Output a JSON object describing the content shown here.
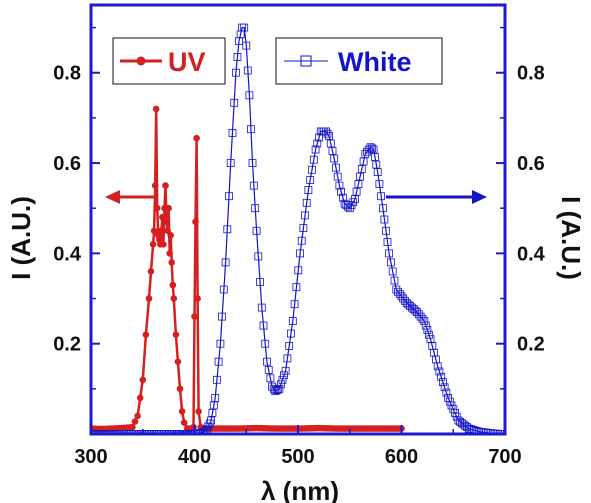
{
  "chart_data": {
    "type": "line",
    "title": "",
    "xlabel": "λ (nm)",
    "ylabel_left": "I (A.U.)",
    "ylabel_right": "I (A.U.)",
    "xlim": [
      300,
      700
    ],
    "ylim": [
      0,
      0.95
    ],
    "x_ticks": [
      300,
      400,
      500,
      600,
      700
    ],
    "y_ticks_left": [
      0.2,
      0.4,
      0.6,
      0.8
    ],
    "y_ticks_right": [
      0.2,
      0.4,
      0.6,
      0.8
    ],
    "grid": false,
    "legend_placement": "top",
    "colors": {
      "uv": "#d42020",
      "white": "#1414c8",
      "frame": "#1a1ad0",
      "text": "#111111"
    },
    "series": [
      {
        "name": "UV",
        "marker": "filled-circle",
        "axis": "left",
        "x": [
          300,
          310,
          320,
          330,
          340,
          345,
          350,
          353,
          356,
          358,
          360,
          361,
          362,
          363,
          364,
          365,
          366,
          367,
          368,
          369,
          370,
          371,
          372,
          373,
          374,
          375,
          376,
          377,
          378,
          379,
          380,
          382,
          384,
          386,
          388,
          390,
          393,
          396,
          399,
          400,
          401,
          402,
          403,
          404,
          406,
          410,
          420,
          440,
          460,
          480,
          500,
          520,
          540,
          560,
          580,
          600
        ],
        "values": [
          0.012,
          0.011,
          0.012,
          0.013,
          0.015,
          0.04,
          0.12,
          0.22,
          0.3,
          0.36,
          0.42,
          0.45,
          0.55,
          0.72,
          0.5,
          0.44,
          0.43,
          0.42,
          0.45,
          0.48,
          0.42,
          0.5,
          0.55,
          0.47,
          0.45,
          0.5,
          0.4,
          0.44,
          0.38,
          0.33,
          0.3,
          0.22,
          0.16,
          0.1,
          0.05,
          0.025,
          0.012,
          0.012,
          0.015,
          0.26,
          0.47,
          0.655,
          0.3,
          0.05,
          0.015,
          0.012,
          0.012,
          0.012,
          0.013,
          0.012,
          0.012,
          0.013,
          0.012,
          0.012,
          0.012,
          0.012
        ]
      },
      {
        "name": "White",
        "marker": "open-square",
        "axis": "right",
        "x": [
          300,
          340,
          380,
          400,
          408,
          412,
          416,
          420,
          425,
          430,
          435,
          440,
          443,
          446,
          448,
          450,
          453,
          456,
          460,
          465,
          470,
          475,
          478,
          482,
          488,
          495,
          502,
          510,
          517,
          522,
          527,
          530,
          535,
          540,
          545,
          550,
          555,
          560,
          565,
          570,
          573,
          577,
          582,
          588,
          595,
          605,
          615,
          622,
          628,
          635,
          645,
          655,
          665,
          675,
          685,
          695,
          700
        ],
        "values": [
          0.0,
          0.0,
          0.0,
          0.0,
          0.003,
          0.01,
          0.03,
          0.08,
          0.2,
          0.38,
          0.6,
          0.8,
          0.87,
          0.9,
          0.9,
          0.86,
          0.75,
          0.6,
          0.45,
          0.28,
          0.16,
          0.105,
          0.095,
          0.1,
          0.14,
          0.25,
          0.4,
          0.54,
          0.63,
          0.67,
          0.67,
          0.66,
          0.61,
          0.55,
          0.51,
          0.5,
          0.52,
          0.57,
          0.62,
          0.635,
          0.63,
          0.58,
          0.5,
          0.4,
          0.32,
          0.29,
          0.27,
          0.25,
          0.21,
          0.15,
          0.08,
          0.03,
          0.012,
          0.005,
          0.002,
          0.0,
          0.0
        ]
      }
    ]
  }
}
